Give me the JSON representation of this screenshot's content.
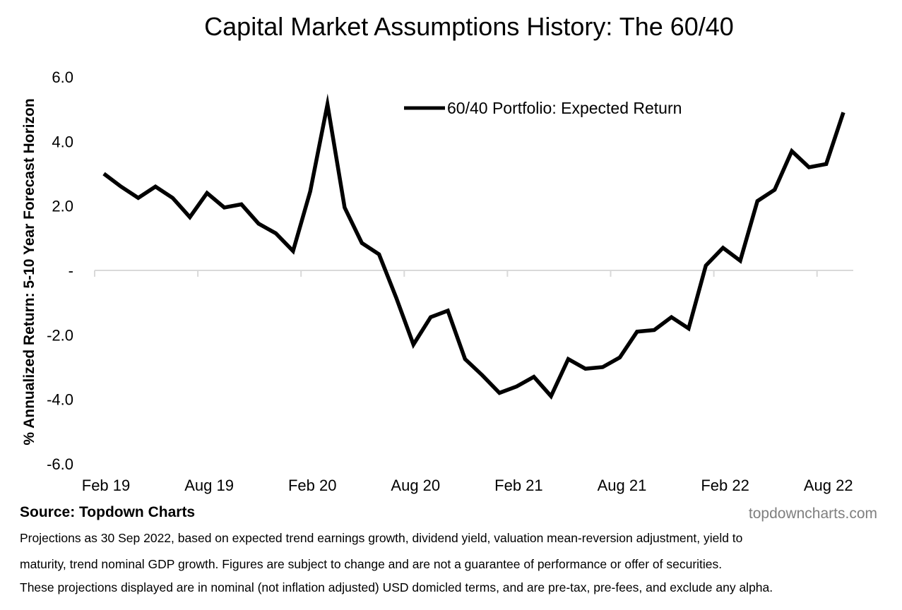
{
  "chart_data": {
    "type": "line",
    "title": "Capital Market Assumptions History: The 60/40",
    "ylabel": "% Annualized Return: 5-10 Year Forecast Horizon",
    "xlabel": "",
    "ylim": [
      -6,
      6
    ],
    "y_ticks": [
      {
        "value": 6,
        "label": "6.0"
      },
      {
        "value": 4,
        "label": "4.0"
      },
      {
        "value": 2,
        "label": "2.0"
      },
      {
        "value": 0,
        "label": "-"
      },
      {
        "value": -2,
        "label": "-2.0"
      },
      {
        "value": -4,
        "label": "-4.0"
      },
      {
        "value": -6,
        "label": "-6.0"
      }
    ],
    "x_start": "2019-02",
    "x_ticks": [
      {
        "index": 0,
        "label": "Feb 19"
      },
      {
        "index": 6,
        "label": "Aug 19"
      },
      {
        "index": 12,
        "label": "Feb 20"
      },
      {
        "index": 18,
        "label": "Aug 20"
      },
      {
        "index": 24,
        "label": "Feb 21"
      },
      {
        "index": 30,
        "label": "Aug 21"
      },
      {
        "index": 36,
        "label": "Feb 22"
      },
      {
        "index": 42,
        "label": "Aug 22"
      }
    ],
    "x": [
      "2019-02",
      "2019-03",
      "2019-04",
      "2019-05",
      "2019-06",
      "2019-07",
      "2019-08",
      "2019-09",
      "2019-10",
      "2019-11",
      "2019-12",
      "2020-01",
      "2020-02",
      "2020-03",
      "2020-04",
      "2020-05",
      "2020-06",
      "2020-07",
      "2020-08",
      "2020-09",
      "2020-10",
      "2020-11",
      "2020-12",
      "2021-01",
      "2021-02",
      "2021-03",
      "2021-04",
      "2021-05",
      "2021-06",
      "2021-07",
      "2021-08",
      "2021-09",
      "2021-10",
      "2021-11",
      "2021-12",
      "2022-01",
      "2022-02",
      "2022-03",
      "2022-04",
      "2022-05",
      "2022-06",
      "2022-07",
      "2022-08",
      "2022-09"
    ],
    "series": [
      {
        "name": "60/40 Portfolio: Expected Return",
        "color": "#000000",
        "values": [
          3.0,
          2.6,
          2.25,
          2.6,
          2.25,
          1.65,
          2.4,
          1.95,
          2.05,
          1.45,
          1.15,
          0.6,
          2.45,
          5.15,
          1.95,
          0.85,
          0.5,
          -0.85,
          -2.3,
          -1.45,
          -1.25,
          -2.75,
          -3.25,
          -3.8,
          -3.6,
          -3.3,
          -3.9,
          -2.75,
          -3.05,
          -3.0,
          -2.7,
          -1.9,
          -1.85,
          -1.45,
          -1.8,
          0.15,
          0.7,
          0.3,
          2.15,
          2.5,
          3.7,
          3.2,
          3.3,
          4.9
        ]
      }
    ],
    "legend": "top-center",
    "grid": false
  },
  "footer": {
    "source": "Source: Topdown Charts",
    "watermark": "topdowncharts.com",
    "notes": [
      "Projections as 30 Sep 2022, based on expected trend earnings growth, dividend yield, valuation mean-reversion adjustment, yield to",
      "maturity, trend nominal GDP growth.  Figures are subject to change and are not a guarantee of performance or offer of securities.",
      "These projections displayed are in nominal (not inflation adjusted) USD domicled terms, and are pre-tax, pre-fees, and exclude any alpha."
    ]
  }
}
